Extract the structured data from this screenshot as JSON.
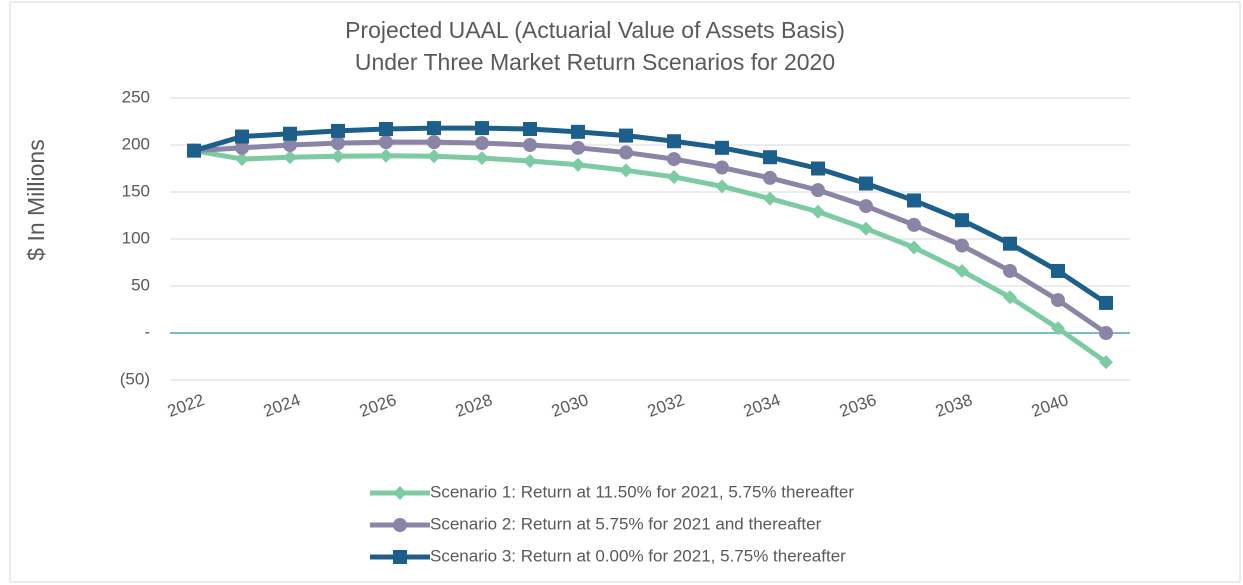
{
  "chart_data": {
    "type": "line",
    "title": "Projected UAAL (Actuarial Value of Assets Basis)",
    "subtitle": "Under Three Market Return Scenarios for 2020",
    "y_label": "$ In Millions",
    "categories": [
      "2022",
      null,
      "2024",
      null,
      "2026",
      null,
      "2028",
      null,
      "2030",
      null,
      "2032",
      null,
      "2034",
      null,
      "2036",
      null,
      "2038",
      null,
      "2040",
      null
    ],
    "series": [
      {
        "name": "Scenario 1:  Return at 11.50% for 2021, 5.75% thereafter",
        "color": "#7ccba2",
        "marker": "diamond",
        "values": [
          194,
          185,
          187,
          188,
          188.5,
          188,
          186,
          183,
          179,
          173,
          166,
          156,
          143,
          129,
          111,
          91,
          66,
          38,
          5,
          -31
        ]
      },
      {
        "name": "Scenario 2:  Return at 5.75% for 2021 and thereafter",
        "color": "#8a84a6",
        "marker": "circle",
        "values": [
          194,
          197,
          200,
          202,
          203,
          203,
          202,
          200,
          197,
          192,
          185,
          176,
          165,
          152,
          135,
          115,
          93,
          66,
          35,
          0
        ]
      },
      {
        "name": "Scenario 3:  Return at 0.00% for 2021, 5.75% thereafter",
        "color": "#1c5f8a",
        "marker": "square",
        "values": [
          194,
          209,
          212,
          215,
          217,
          218,
          218,
          217,
          214,
          210,
          204,
          197,
          187,
          175,
          159,
          141,
          120,
          95,
          66,
          32
        ]
      }
    ],
    "ylim": [
      -50,
      250
    ],
    "yticks": [
      {
        "value": -50,
        "label": "(50)"
      },
      {
        "value": 0,
        "label": "-"
      },
      50,
      100,
      150,
      200,
      250
    ],
    "grid": true,
    "zero_line_color": "#4da6b8",
    "legend": "bottom"
  }
}
